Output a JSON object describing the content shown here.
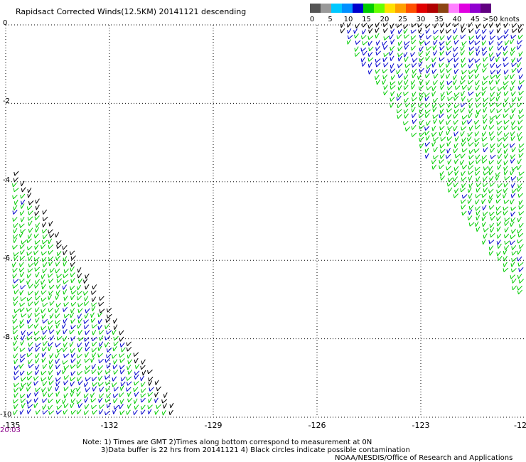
{
  "title": "Rapidsact Corrected Winds(12.5KM) 20141121 descending",
  "colorbar": {
    "labels": [
      "0",
      "5",
      "10",
      "15",
      "20",
      "25",
      "30",
      "35",
      "40",
      "45",
      ">50 knots"
    ],
    "colors": [
      "#555555",
      "#999999",
      "#00c8ff",
      "#0090ff",
      "#0000cc",
      "#00cc00",
      "#66ff00",
      "#ffe000",
      "#ffa000",
      "#ff5000",
      "#e00000",
      "#b00000",
      "#8b4513",
      "#ff80ff",
      "#e000e0",
      "#9000d0",
      "#600080"
    ]
  },
  "map": {
    "x_ticks": [
      "-135",
      "-132",
      "-129",
      "-126",
      "-123",
      "-12"
    ],
    "y_ticks": [
      "0",
      "-2",
      "-4",
      "-6",
      "-8",
      "-10"
    ],
    "x_range": [
      -135,
      -120
    ],
    "y_range": [
      -10,
      0
    ],
    "grid": true,
    "barb_colors": {
      "slow": "#0000cc",
      "medium": "#00cc00",
      "edge": "#000000"
    },
    "swaths": [
      {
        "name": "west",
        "vertices": [
          [
            -134.9,
            -3.5
          ],
          [
            -130.0,
            -10.0
          ],
          [
            -134.9,
            -10.0
          ]
        ]
      },
      {
        "name": "east",
        "vertices": [
          [
            -125.5,
            0.0
          ],
          [
            -120.0,
            0.0
          ],
          [
            -120.0,
            -7.2
          ]
        ]
      }
    ]
  },
  "time_label": "20:03",
  "notes": {
    "line1": "Note: 1) Times are GMT 2)Times along bottom correspond to measurement at 0N",
    "line2": "3)Data buffer is 22 hrs from 20141121 4) Black circles indicate possible contamination",
    "line3": "NOAA/NESDIS/Office of Research and Applications"
  }
}
